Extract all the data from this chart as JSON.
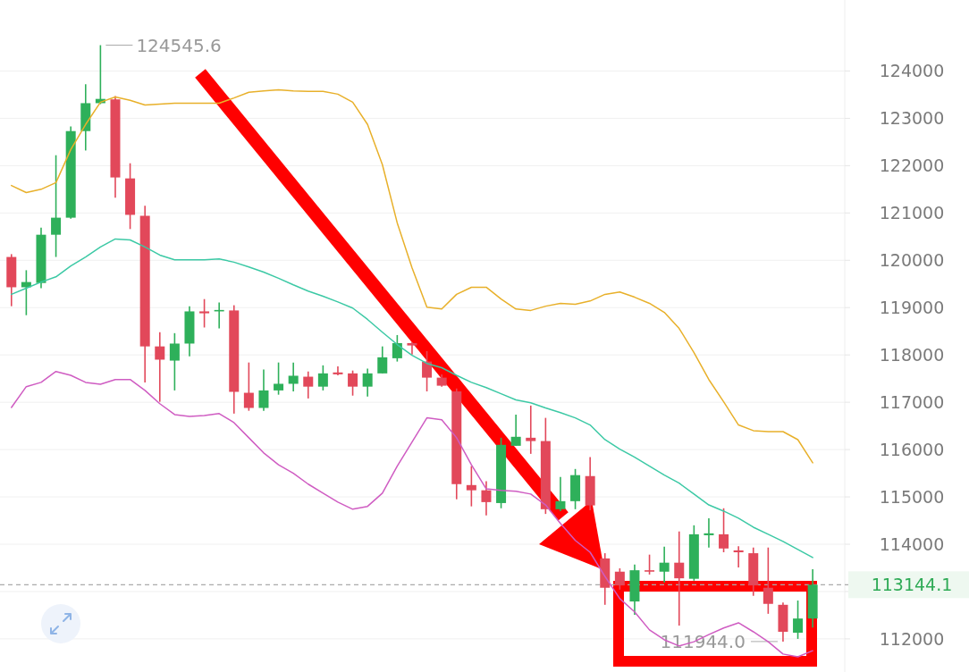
{
  "chart_data": {
    "type": "candlestick",
    "categories": [
      null,
      null,
      null,
      null,
      null,
      null,
      null,
      null,
      null,
      null,
      null,
      null,
      null,
      null,
      null,
      null,
      null,
      null,
      null,
      null,
      null,
      null,
      null,
      null,
      null,
      null,
      null,
      null,
      null,
      null,
      null,
      null,
      null,
      null,
      null,
      null,
      null,
      null,
      null,
      null,
      null,
      null,
      null,
      null,
      null,
      null,
      null,
      null,
      null,
      null,
      null,
      null,
      null,
      null,
      null
    ],
    "ohlc": [
      [
        120070,
        120130,
        119030,
        119430
      ],
      [
        119430,
        119790,
        118840,
        119540
      ],
      [
        119520,
        120690,
        119410,
        120540
      ],
      [
        120540,
        122220,
        120070,
        120900
      ],
      [
        120900,
        122830,
        120880,
        122730
      ],
      [
        122730,
        123720,
        122320,
        123320
      ],
      [
        123320,
        124545.6,
        123300,
        123410
      ],
      [
        123400,
        123470,
        121320,
        121750
      ],
      [
        121730,
        122050,
        120660,
        120960
      ],
      [
        120940,
        121150,
        117420,
        118180
      ],
      [
        118180,
        118480,
        117010,
        117900
      ],
      [
        117880,
        118460,
        117250,
        118240
      ],
      [
        118240,
        119030,
        117970,
        118920
      ],
      [
        118920,
        119180,
        118580,
        118880
      ],
      [
        118920,
        119110,
        118560,
        118950
      ],
      [
        118940,
        119050,
        116760,
        117220
      ],
      [
        117200,
        117840,
        116820,
        116880
      ],
      [
        116880,
        117690,
        116820,
        117250
      ],
      [
        117250,
        117840,
        117160,
        117390
      ],
      [
        117390,
        117840,
        117230,
        117560
      ],
      [
        117540,
        117650,
        117080,
        117330
      ],
      [
        117330,
        117780,
        117250,
        117610
      ],
      [
        117630,
        117760,
        117570,
        117590
      ],
      [
        117610,
        117670,
        117140,
        117330
      ],
      [
        117330,
        117710,
        117120,
        117610
      ],
      [
        117610,
        118180,
        117610,
        117950
      ],
      [
        117930,
        118420,
        117860,
        118250
      ],
      [
        118250,
        118270,
        118010,
        118200
      ],
      [
        117860,
        118080,
        117230,
        117520
      ],
      [
        117520,
        117590,
        117330,
        117350
      ],
      [
        117230,
        117290,
        114950,
        115270
      ],
      [
        115250,
        115650,
        114800,
        115140
      ],
      [
        115140,
        115330,
        114610,
        114890
      ],
      [
        114870,
        116250,
        114760,
        116100
      ],
      [
        116080,
        116740,
        116080,
        116270
      ],
      [
        116250,
        116930,
        115910,
        116180
      ],
      [
        116180,
        116670,
        114640,
        114740
      ],
      [
        114740,
        115420,
        114700,
        114910
      ],
      [
        114910,
        115590,
        114740,
        115460
      ],
      [
        115440,
        115840,
        114720,
        114820
      ],
      [
        113700,
        113810,
        112720,
        113080
      ],
      [
        113420,
        113490,
        113040,
        113130
      ],
      [
        112790,
        113570,
        112510,
        113450
      ],
      [
        113450,
        113780,
        113360,
        113420
      ],
      [
        113420,
        113950,
        113190,
        113610
      ],
      [
        113610,
        114270,
        112280,
        113280
      ],
      [
        113270,
        114400,
        113230,
        114210
      ],
      [
        114190,
        114550,
        113930,
        114230
      ],
      [
        114210,
        114760,
        113830,
        113910
      ],
      [
        113870,
        113960,
        113510,
        113830
      ],
      [
        113810,
        113930,
        112910,
        113130
      ],
      [
        113080,
        113930,
        112530,
        112740
      ],
      [
        112720,
        112770,
        111944.0,
        112150
      ],
      [
        112130,
        112810,
        112000,
        112430
      ],
      [
        112430,
        113470,
        112240,
        113144.1
      ]
    ],
    "series": [
      {
        "type": "line",
        "color": "#e8b02a",
        "values": [
          121580,
          121430,
          121500,
          121640,
          122340,
          122870,
          123340,
          123450,
          123380,
          123280,
          123300,
          123320,
          123320,
          123320,
          123320,
          123430,
          123550,
          123580,
          123600,
          123580,
          123570,
          123570,
          123510,
          123340,
          122870,
          122020,
          120790,
          119840,
          119010,
          118970,
          119280,
          119430,
          119430,
          119180,
          118970,
          118940,
          119030,
          119090,
          119070,
          119140,
          119280,
          119330,
          119220,
          119090,
          118900,
          118560,
          118050,
          117480,
          117010,
          116520,
          116400,
          116380,
          116380,
          116210,
          115720
        ]
      },
      {
        "type": "line",
        "color": "#3cc9a5",
        "values": [
          119280,
          119410,
          119540,
          119650,
          119880,
          120070,
          120280,
          120450,
          120430,
          120280,
          120110,
          120010,
          120010,
          120010,
          120030,
          119960,
          119860,
          119750,
          119620,
          119480,
          119350,
          119240,
          119120,
          118990,
          118750,
          118480,
          118220,
          117990,
          117820,
          117730,
          117570,
          117420,
          117310,
          117180,
          117050,
          116990,
          116880,
          116780,
          116670,
          116520,
          116210,
          116010,
          115840,
          115650,
          115460,
          115290,
          115060,
          114830,
          114700,
          114550,
          114360,
          114210,
          114060,
          113890,
          113720
        ]
      },
      {
        "type": "line",
        "color": "#cf5cc2",
        "values": [
          116890,
          117330,
          117420,
          117650,
          117570,
          117420,
          117380,
          117480,
          117480,
          117250,
          116970,
          116740,
          116700,
          116720,
          116760,
          116570,
          116250,
          115930,
          115680,
          115500,
          115270,
          115080,
          114890,
          114740,
          114800,
          115080,
          115650,
          116160,
          116670,
          116630,
          116250,
          115680,
          115170,
          115140,
          115120,
          115060,
          114830,
          114440,
          114080,
          113830,
          113320,
          112850,
          112570,
          112190,
          111980,
          111850,
          111940,
          112090,
          112230,
          112340,
          112150,
          111940,
          111680,
          111620,
          111750
        ]
      }
    ],
    "ylim": [
      111300,
      125500
    ],
    "yticks": [
      112000,
      {
        "value": 113000,
        "label": null
      },
      114000,
      115000,
      116000,
      117000,
      118000,
      119000,
      120000,
      121000,
      122000,
      123000,
      124000
    ],
    "grid": "y",
    "ref_lines": [
      {
        "axis": "y",
        "value": 113144.1,
        "label": "113144.1",
        "color": "#aaaaaa",
        "line_style": "dashed"
      }
    ],
    "annotations": [
      "124545.6",
      "111944.0"
    ]
  }
}
